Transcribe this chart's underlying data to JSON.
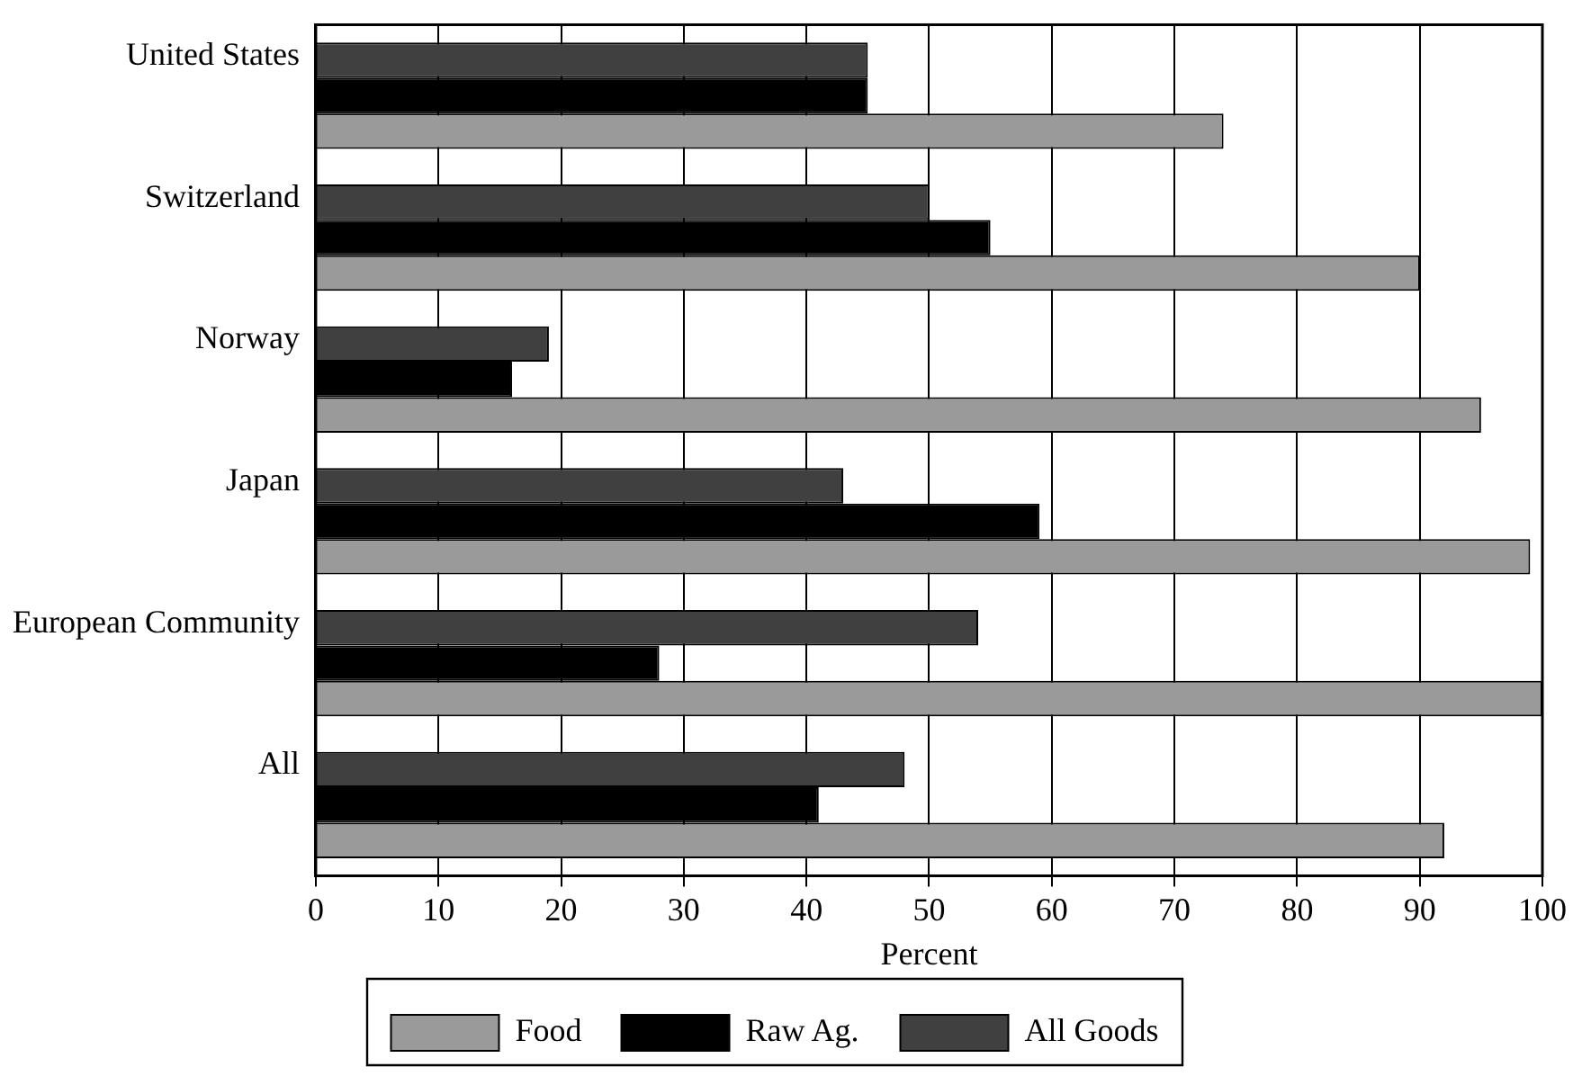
{
  "chart_data": {
    "type": "bar",
    "orientation": "horizontal",
    "xlabel": "Percent",
    "categories": [
      "United States",
      "Switzerland",
      "Norway",
      "Japan",
      "European Community",
      "All"
    ],
    "series": [
      {
        "name": "All Goods",
        "color": "#404040",
        "values": [
          45,
          50,
          19,
          43,
          54,
          48
        ]
      },
      {
        "name": "Raw Ag.",
        "color": "#000000",
        "values": [
          45,
          55,
          16,
          59,
          28,
          41
        ]
      },
      {
        "name": "Food",
        "color": "#9a9a9a",
        "values": [
          74,
          90,
          95,
          99,
          100,
          92
        ]
      }
    ],
    "xlim": [
      0,
      100
    ],
    "xticks": [
      0,
      10,
      20,
      30,
      40,
      50,
      60,
      70,
      80,
      90,
      100
    ],
    "grid": "x",
    "legend": "bottom"
  }
}
